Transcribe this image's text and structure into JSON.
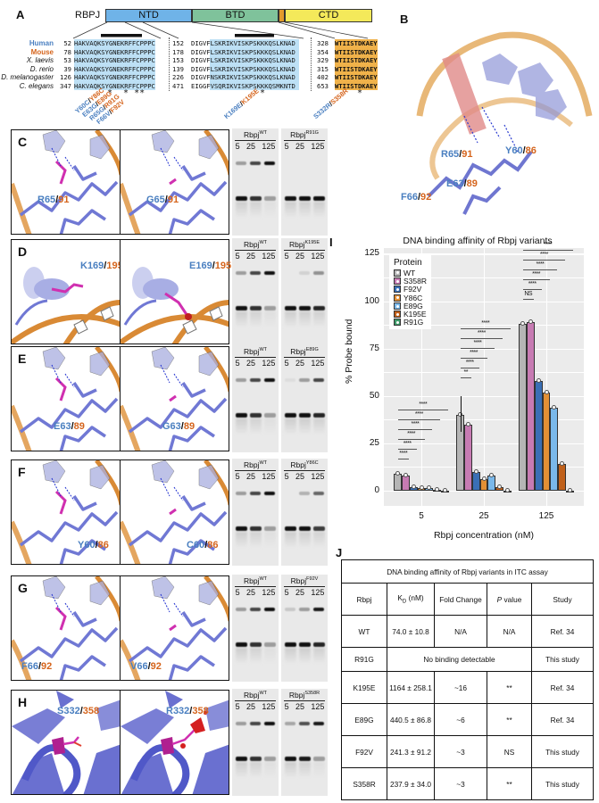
{
  "panels": {
    "A": "A",
    "B": "B",
    "C": "C",
    "D": "D",
    "E": "E",
    "F": "F",
    "G": "G",
    "H": "H",
    "I": "I",
    "J": "J"
  },
  "panelA": {
    "protein": "RBPJ",
    "domains": [
      {
        "label": "NTD",
        "color": "#6fb3e8"
      },
      {
        "label": "BTD",
        "color": "#7fc29b"
      },
      {
        "label": "",
        "color": "#e39a2b"
      },
      {
        "label": "CTD",
        "color": "#f4e95a"
      }
    ],
    "species": [
      {
        "name": "Human",
        "color": "#4a7fc0",
        "bold": true
      },
      {
        "name": "Mouse",
        "color": "#d5641c",
        "bold": true
      },
      {
        "name": "X. laevis",
        "color": "#222",
        "bold": false
      },
      {
        "name": "D. rerio",
        "color": "#222",
        "bold": false
      },
      {
        "name": "D. melanogaster",
        "color": "#222",
        "bold": false
      },
      {
        "name": "C. elegans",
        "color": "#222",
        "bold": false
      }
    ],
    "block1": {
      "nums": [
        "52",
        "78",
        "53",
        "39",
        "126",
        "347"
      ],
      "seqs": [
        "HAKVAQKSYGNEKRFFCPPPC",
        "HAKVAQKSYGNEKRFFCPPPC",
        "HAKVAQKSYGNEKRFFCPPPC",
        "HAKVAQKSYGNEKRFFCPPPC",
        "HAKVAQKSYGNEKRFFCPPPC",
        "HAKVAQKSYGNEKRFFCPPPC"
      ],
      "stars": "*  * **"
    },
    "block2": {
      "nums": [
        "152",
        "178",
        "153",
        "139",
        "226",
        "471"
      ],
      "seqs": [
        "DIGVFLSKRIKVISKPSKKKQSLKNAD",
        "DIGVFLSKRIKVISKPSKKKQSLKNAD",
        "DIGVFLSKRIKVISKPSKKKQSLKNAD",
        "DIGVFLSKRIKVISKPSKKKQSLKNAD",
        "DIGVFNSKRIKVISKPSKKKQSLKNAD",
        "EIGGFVSQRIKVISKPSKKKQSMKNTD"
      ],
      "stars": "*"
    },
    "block3": {
      "nums": [
        "328",
        "354",
        "329",
        "315",
        "402",
        "653"
      ],
      "seqs": [
        "WTIISTDKAEY",
        "WTIISTDKAEY",
        "WTIISTDKAEY",
        "WTIISTDKAEY",
        "WTIISTDKAEY",
        "WTIISTDKAEY"
      ],
      "stars": "*"
    },
    "mutations_ntd": [
      {
        "human": "Y60C",
        "mouse": "Y86C"
      },
      {
        "human": "E63G",
        "mouse": "E89G"
      },
      {
        "human": "R65G",
        "mouse": "R91G"
      },
      {
        "human": "F66V",
        "mouse": "F92V"
      }
    ],
    "mutation_btd": {
      "human": "K169E",
      "mouse": "K195E"
    },
    "mutation_ctd": {
      "human": "S332R",
      "mouse": "S358R"
    }
  },
  "panelB": {
    "labels": [
      {
        "human": "R65",
        "mouse": "91"
      },
      {
        "human": "Y60",
        "mouse": "86"
      },
      {
        "human": "E63",
        "mouse": "89"
      },
      {
        "human": "F66",
        "mouse": "92"
      }
    ]
  },
  "rows": [
    {
      "panel": "C",
      "wt": {
        "human": "R65",
        "mouse": "91"
      },
      "mut": {
        "human": "G65",
        "mouse": "91"
      },
      "gel_mut": "R91G"
    },
    {
      "panel": "D",
      "wt": {
        "human": "K169",
        "mouse": "195"
      },
      "mut": {
        "human": "E169",
        "mouse": "195"
      },
      "gel_mut": "K195E"
    },
    {
      "panel": "E",
      "wt": {
        "human": "E63",
        "mouse": "89"
      },
      "mut": {
        "human": "G63",
        "mouse": "89"
      },
      "gel_mut": "E89G"
    },
    {
      "panel": "F",
      "wt": {
        "human": "Y60",
        "mouse": "86"
      },
      "mut": {
        "human": "C60",
        "mouse": "86"
      },
      "gel_mut": "Y86C"
    },
    {
      "panel": "G",
      "wt": {
        "human": "F66",
        "mouse": "92"
      },
      "mut": {
        "human": "V66",
        "mouse": "92"
      },
      "gel_mut": "F92V"
    },
    {
      "panel": "H",
      "wt": {
        "human": "S332",
        "mouse": "358"
      },
      "mut": {
        "human": "R332",
        "mouse": "358"
      },
      "gel_mut": "S358R"
    }
  ],
  "gel": {
    "base": "Rbpj",
    "wt_sup": "WT",
    "lanes": [
      "5",
      "25",
      "125"
    ]
  },
  "chart_data": {
    "type": "bar",
    "title": "DNA binding affinity of Rbpj variants",
    "xlabel": "Rbpj concentration (nM)",
    "ylabel": "% Probe bound",
    "ylim": [
      -8,
      128
    ],
    "yticks": [
      0,
      25,
      50,
      75,
      100,
      125
    ],
    "categories": [
      "5",
      "25",
      "125"
    ],
    "legend_title": "Protein",
    "series": [
      {
        "name": "WT",
        "color": "#b5b5b5",
        "values": [
          9,
          40,
          88
        ]
      },
      {
        "name": "S358R",
        "color": "#c77bb3",
        "values": [
          8,
          35,
          89
        ]
      },
      {
        "name": "F92V",
        "color": "#3a6fb5",
        "values": [
          2,
          10,
          58
        ]
      },
      {
        "name": "Y86C",
        "color": "#e39035",
        "values": [
          1.5,
          6,
          52
        ]
      },
      {
        "name": "E89G",
        "color": "#7ab8ea",
        "values": [
          1.5,
          8,
          44
        ]
      },
      {
        "name": "K195E",
        "color": "#c0601a",
        "values": [
          0.5,
          2,
          14
        ]
      },
      {
        "name": "R91G",
        "color": "#3f9a6a",
        "values": [
          0,
          0,
          0
        ]
      }
    ],
    "significance": {
      "5": [
        "****",
        "****",
        "****",
        "****",
        "****",
        "****"
      ],
      "25": [
        "**",
        "****",
        "****",
        "****",
        "****",
        "****"
      ],
      "125": [
        "NS",
        "****",
        "****",
        "****",
        "****",
        "****"
      ]
    }
  },
  "table": {
    "title": "DNA binding affinity of Rbpj variants in ITC assay",
    "headers": [
      "Rbpj",
      "K₀ (nM)",
      "Fold Change",
      "P value",
      "Study"
    ],
    "header_kd_main": "K",
    "header_kd_sub": "D",
    "header_kd_unit": " (nM)",
    "header_fold": "Fold Change",
    "header_p_italic": "P",
    "header_p_rest": " value",
    "rows": [
      {
        "rbpj": "WT",
        "kd": "74.0 ± 10.8",
        "fold": "N/A",
        "p": "N/A",
        "study": "Ref. 34"
      },
      {
        "rbpj": "R91G",
        "merged": "No binding detectable",
        "study": "This study"
      },
      {
        "rbpj": "K195E",
        "kd": "1164 ± 258.1",
        "fold": "~16",
        "p": "**",
        "study": "Ref. 34"
      },
      {
        "rbpj": "E89G",
        "kd": "440.5 ± 86.8",
        "fold": "~6",
        "p": "**",
        "study": "Ref. 34"
      },
      {
        "rbpj": "F92V",
        "kd": "241.3 ± 91.2",
        "fold": "~3",
        "p": "NS",
        "study": "This study"
      },
      {
        "rbpj": "S358R",
        "kd": "237.9 ± 34.0",
        "fold": "~3",
        "p": "**",
        "study": "This study"
      }
    ]
  }
}
